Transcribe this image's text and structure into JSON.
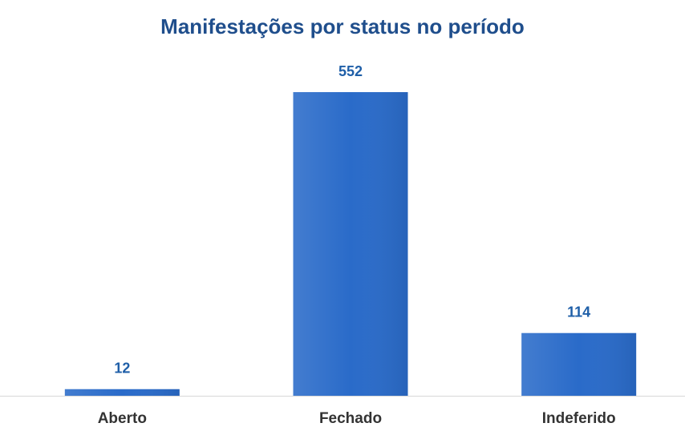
{
  "chart_data": {
    "type": "bar",
    "title": "Manifestações por status no período",
    "categories": [
      "Aberto",
      "Fechado",
      "Indeferido"
    ],
    "values": [
      12,
      552,
      114
    ],
    "color": "#2a6bc9"
  }
}
